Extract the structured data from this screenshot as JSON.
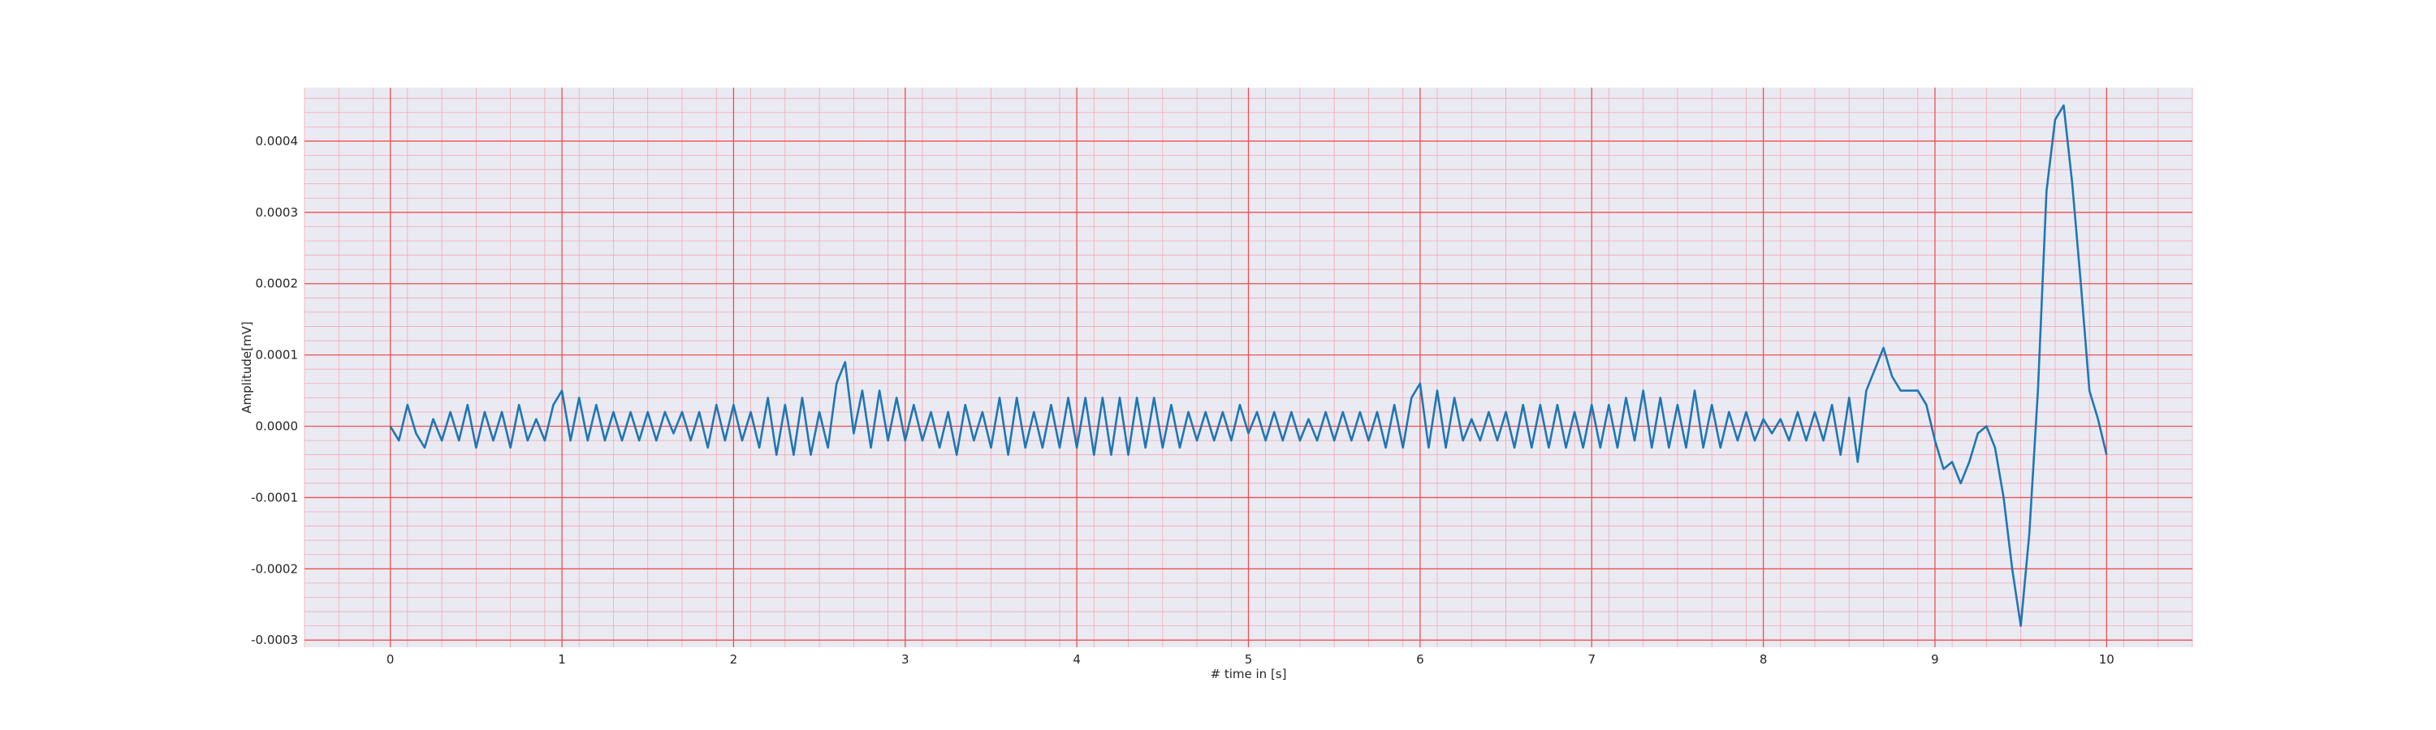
{
  "chart_data": {
    "type": "line",
    "title": "",
    "xlabel": "# time in [s]",
    "ylabel": "Amplitude[mV]",
    "xlim": [
      -0.5,
      10.5
    ],
    "ylim": [
      -0.00031,
      0.000475
    ],
    "xticks": [
      0,
      1,
      2,
      3,
      4,
      5,
      6,
      7,
      8,
      9,
      10
    ],
    "xtick_labels": [
      "0",
      "1",
      "2",
      "3",
      "4",
      "5",
      "6",
      "7",
      "8",
      "9",
      "10"
    ],
    "yticks": [
      -0.0003,
      -0.0002,
      -0.0001,
      0.0,
      0.0001,
      0.0002,
      0.0003,
      0.0004
    ],
    "ytick_labels": [
      "-0.0003",
      "-0.0002",
      "-0.0001",
      "0.0000",
      "0.0001",
      "0.0002",
      "0.0003",
      "0.0004"
    ],
    "grid": true,
    "minor_grid": true,
    "colors": {
      "plot_background": "#eaeaf2",
      "major_grid": "#f05050",
      "minor_grid": "#f3a8b4",
      "line": "#1f77b4"
    },
    "series": [
      {
        "x": [
          0.0,
          0.05,
          0.1,
          0.15,
          0.2,
          0.25,
          0.3,
          0.35,
          0.4,
          0.45,
          0.5,
          0.55,
          0.6,
          0.65,
          0.7,
          0.75,
          0.8,
          0.85,
          0.9,
          0.95,
          1.0,
          1.05,
          1.1,
          1.15,
          1.2,
          1.25,
          1.3,
          1.35,
          1.4,
          1.45,
          1.5,
          1.55,
          1.6,
          1.65,
          1.7,
          1.75,
          1.8,
          1.85,
          1.9,
          1.95,
          2.0,
          2.05,
          2.1,
          2.15,
          2.2,
          2.25,
          2.3,
          2.35,
          2.4,
          2.45,
          2.5,
          2.55,
          2.6,
          2.65,
          2.7,
          2.75,
          2.8,
          2.85,
          2.9,
          2.95,
          3.0,
          3.05,
          3.1,
          3.15,
          3.2,
          3.25,
          3.3,
          3.35,
          3.4,
          3.45,
          3.5,
          3.55,
          3.6,
          3.65,
          3.7,
          3.75,
          3.8,
          3.85,
          3.9,
          3.95,
          4.0,
          4.05,
          4.1,
          4.15,
          4.2,
          4.25,
          4.3,
          4.35,
          4.4,
          4.45,
          4.5,
          4.55,
          4.6,
          4.65,
          4.7,
          4.75,
          4.8,
          4.85,
          4.9,
          4.95,
          5.0,
          5.05,
          5.1,
          5.15,
          5.2,
          5.25,
          5.3,
          5.35,
          5.4,
          5.45,
          5.5,
          5.55,
          5.6,
          5.65,
          5.7,
          5.75,
          5.8,
          5.85,
          5.9,
          5.95,
          6.0,
          6.05,
          6.1,
          6.15,
          6.2,
          6.25,
          6.3,
          6.35,
          6.4,
          6.45,
          6.5,
          6.55,
          6.6,
          6.65,
          6.7,
          6.75,
          6.8,
          6.85,
          6.9,
          6.95,
          7.0,
          7.05,
          7.1,
          7.15,
          7.2,
          7.25,
          7.3,
          7.35,
          7.4,
          7.45,
          7.5,
          7.55,
          7.6,
          7.65,
          7.7,
          7.75,
          7.8,
          7.85,
          7.9,
          7.95,
          8.0,
          8.05,
          8.1,
          8.15,
          8.2,
          8.25,
          8.3,
          8.35,
          8.4,
          8.45,
          8.5,
          8.55,
          8.6,
          8.65,
          8.7,
          8.75,
          8.8,
          8.85,
          8.9,
          8.95,
          9.0,
          9.05,
          9.1,
          9.15,
          9.2,
          9.25,
          9.3,
          9.35,
          9.4,
          9.45,
          9.5,
          9.55,
          9.6,
          9.65,
          9.7,
          9.75,
          9.8,
          9.85,
          9.9,
          9.95,
          10.0
        ],
        "y": [
          0.0,
          -2e-05,
          3e-05,
          -1e-05,
          -3e-05,
          1e-05,
          -2e-05,
          2e-05,
          -2e-05,
          3e-05,
          -3e-05,
          2e-05,
          -2e-05,
          2e-05,
          -3e-05,
          3e-05,
          -2e-05,
          1e-05,
          -2e-05,
          3e-05,
          5e-05,
          -2e-05,
          4e-05,
          -2e-05,
          3e-05,
          -2e-05,
          2e-05,
          -2e-05,
          2e-05,
          -2e-05,
          2e-05,
          -2e-05,
          2e-05,
          -1e-05,
          2e-05,
          -2e-05,
          2e-05,
          -3e-05,
          3e-05,
          -2e-05,
          3e-05,
          -2e-05,
          2e-05,
          -3e-05,
          4e-05,
          -4e-05,
          3e-05,
          -4e-05,
          4e-05,
          -4e-05,
          2e-05,
          -3e-05,
          6e-05,
          9e-05,
          -1e-05,
          5e-05,
          -3e-05,
          5e-05,
          -2e-05,
          4e-05,
          -2e-05,
          3e-05,
          -2e-05,
          2e-05,
          -3e-05,
          2e-05,
          -4e-05,
          3e-05,
          -2e-05,
          2e-05,
          -3e-05,
          4e-05,
          -4e-05,
          4e-05,
          -3e-05,
          2e-05,
          -3e-05,
          3e-05,
          -3e-05,
          4e-05,
          -3e-05,
          4e-05,
          -4e-05,
          4e-05,
          -4e-05,
          4e-05,
          -4e-05,
          4e-05,
          -3e-05,
          4e-05,
          -3e-05,
          3e-05,
          -3e-05,
          2e-05,
          -2e-05,
          2e-05,
          -2e-05,
          2e-05,
          -2e-05,
          3e-05,
          -1e-05,
          2e-05,
          -2e-05,
          2e-05,
          -2e-05,
          2e-05,
          -2e-05,
          1e-05,
          -2e-05,
          2e-05,
          -2e-05,
          2e-05,
          -2e-05,
          2e-05,
          -2e-05,
          2e-05,
          -3e-05,
          3e-05,
          -3e-05,
          4e-05,
          6e-05,
          -3e-05,
          5e-05,
          -3e-05,
          4e-05,
          -2e-05,
          1e-05,
          -2e-05,
          2e-05,
          -2e-05,
          2e-05,
          -3e-05,
          3e-05,
          -3e-05,
          3e-05,
          -3e-05,
          3e-05,
          -3e-05,
          2e-05,
          -3e-05,
          3e-05,
          -3e-05,
          3e-05,
          -3e-05,
          4e-05,
          -2e-05,
          5e-05,
          -3e-05,
          4e-05,
          -3e-05,
          3e-05,
          -3e-05,
          5e-05,
          -3e-05,
          3e-05,
          -3e-05,
          2e-05,
          -2e-05,
          2e-05,
          -2e-05,
          1e-05,
          -1e-05,
          1e-05,
          -2e-05,
          2e-05,
          -2e-05,
          2e-05,
          -2e-05,
          3e-05,
          -4e-05,
          4e-05,
          -5e-05,
          5e-05,
          8e-05,
          0.00011,
          7e-05,
          5e-05,
          5e-05,
          5e-05,
          3e-05,
          -2e-05,
          -6e-05,
          -5e-05,
          -8e-05,
          -5e-05,
          -1e-05,
          0.0,
          -3e-05,
          -0.0001,
          -0.0002,
          -0.00028,
          -0.00015,
          5e-05,
          0.00033,
          0.00043,
          0.00045,
          0.00034,
          0.0002,
          5e-05,
          1e-05,
          -4e-05
        ]
      }
    ]
  }
}
